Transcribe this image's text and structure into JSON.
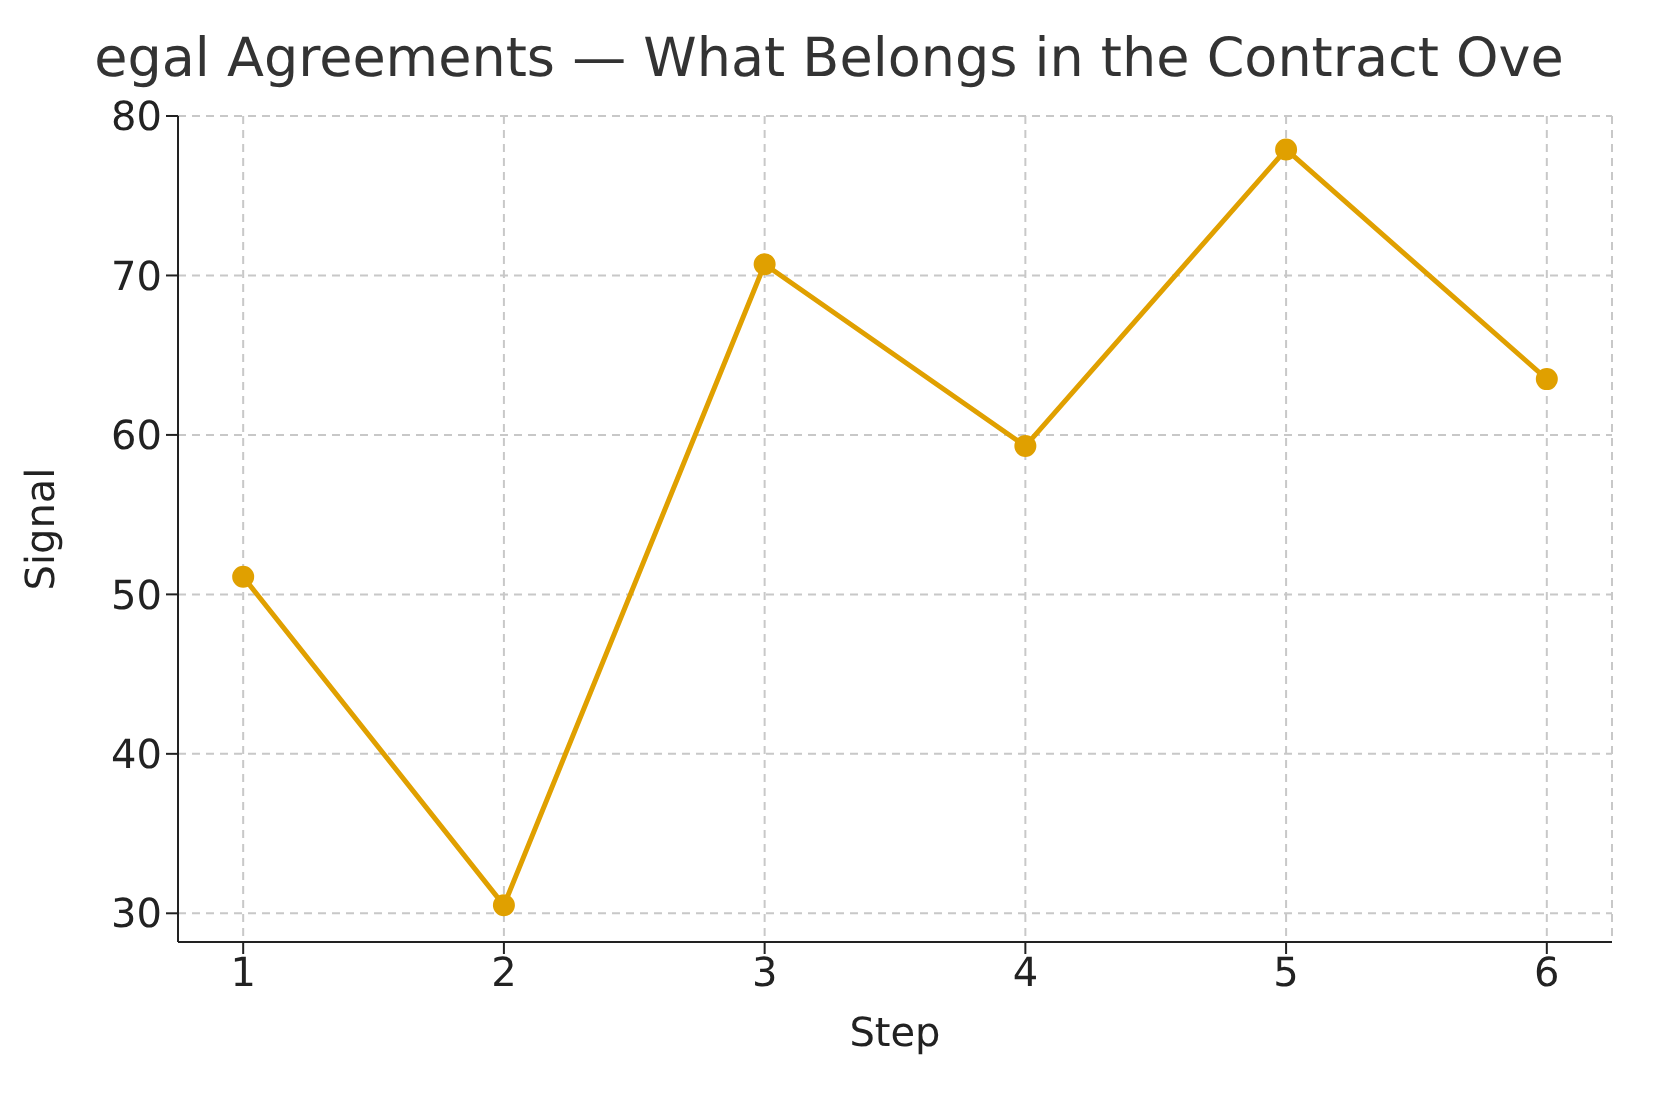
{
  "chart_data": {
    "type": "line",
    "title": "egal Agreements — What Belongs in the Contract Ove",
    "xlabel": "Step",
    "ylabel": "Signal",
    "x": [
      1,
      2,
      3,
      4,
      5,
      6
    ],
    "series": [
      {
        "color": "#e0a000",
        "values": [
          51.1,
          30.5,
          70.7,
          59.3,
          77.9,
          63.5
        ]
      }
    ],
    "xlim": [
      0.75,
      6.25
    ],
    "xticks": [
      1,
      2,
      3,
      4,
      5,
      6
    ],
    "ylim": [
      28.2,
      80
    ],
    "yticks": [
      30,
      40,
      50,
      60,
      70,
      80
    ],
    "grid": true,
    "marker": "circle",
    "line_style": "solid",
    "legend": false
  }
}
